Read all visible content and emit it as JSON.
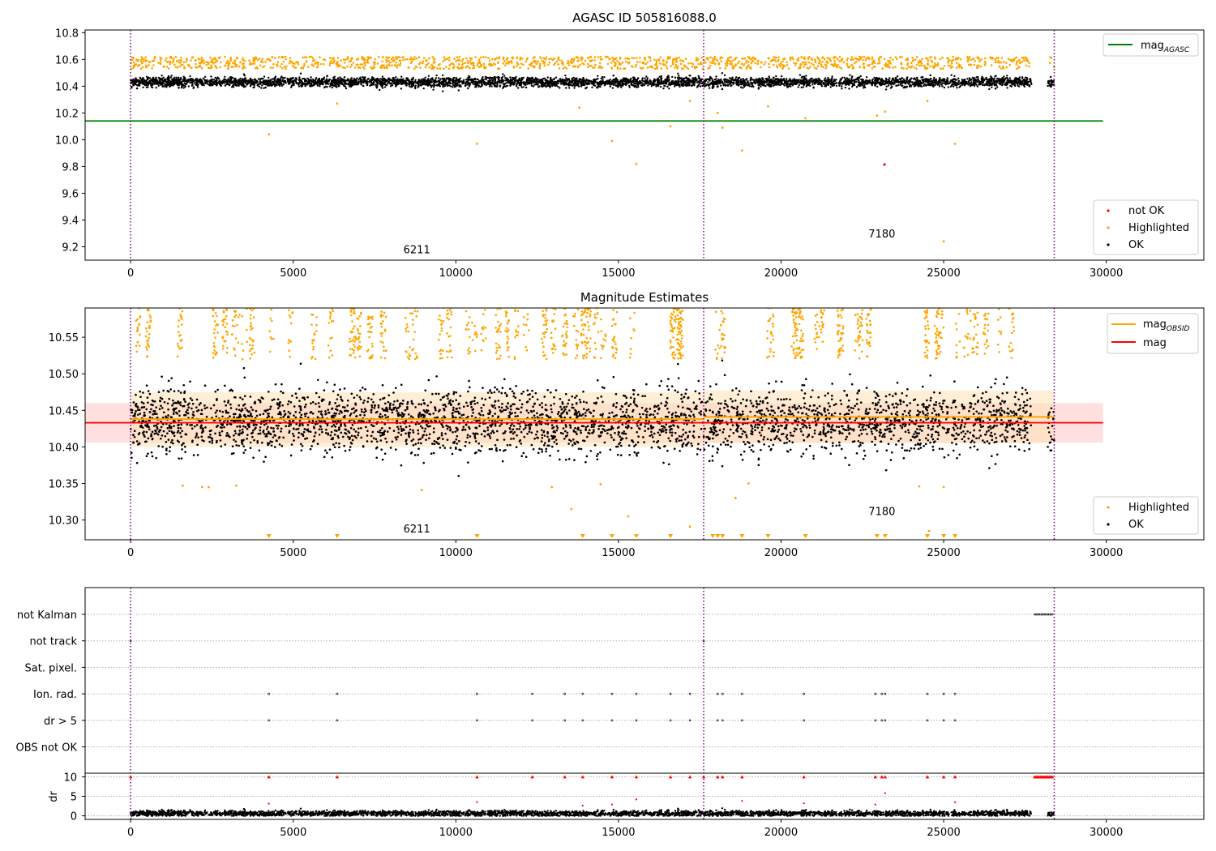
{
  "colors": {
    "ok": "#000000",
    "highlighted": "#ffa500",
    "not_ok": "#ff0000",
    "agasc_line": "#008000",
    "obsid_line": "#ffa500",
    "mag_line": "#ff0000",
    "obsid_boundary": "#800080",
    "grid": "#b0b0b0"
  },
  "chart_data": [
    {
      "type": "scatter",
      "title": "AGASC ID 505816088.0",
      "xlabel": "",
      "ylabel": "",
      "xlim": [
        -1400,
        33000
      ],
      "ylim": [
        9.1,
        10.82
      ],
      "xticks": [
        0,
        5000,
        10000,
        15000,
        20000,
        25000,
        30000
      ],
      "yticks": [
        9.2,
        9.4,
        9.6,
        9.8,
        10.0,
        10.2,
        10.4,
        10.6,
        10.8
      ],
      "ytick_labels": [
        "9.2",
        "9.4",
        "9.6",
        "9.8",
        "10.0",
        "10.2",
        "10.4",
        "10.6",
        "10.8"
      ],
      "obsid_boundaries": [
        0,
        17620,
        28400
      ],
      "obsid_labels": [
        {
          "text": "6211",
          "x": 8800,
          "y": 9.15
        },
        {
          "text": "7180",
          "x": 23100,
          "y": 9.27
        }
      ],
      "reference_lines": [
        {
          "name": "mag_AGASC",
          "y": 10.14,
          "x_range": [
            -1400,
            29900
          ]
        }
      ],
      "ok_band": {
        "center": 10.43,
        "spread": 0.03
      },
      "highlighted_band": {
        "low": 10.53,
        "high": 10.62
      },
      "highlighted_outliers": [
        [
          4250,
          10.04
        ],
        [
          6350,
          10.27
        ],
        [
          10650,
          9.97
        ],
        [
          14800,
          9.99
        ],
        [
          15550,
          9.82
        ],
        [
          16600,
          10.1
        ],
        [
          18050,
          10.2
        ],
        [
          18200,
          10.09
        ],
        [
          18800,
          9.92
        ],
        [
          19600,
          10.25
        ],
        [
          20750,
          10.16
        ],
        [
          22950,
          10.18
        ],
        [
          23200,
          10.21
        ],
        [
          24500,
          10.29
        ],
        [
          25000,
          9.24
        ],
        [
          25350,
          9.97
        ],
        [
          13800,
          10.24
        ],
        [
          17200,
          10.29
        ]
      ],
      "not_ok_points": [
        [
          23180,
          9.815
        ]
      ],
      "legend_top": {
        "position": "upper right",
        "entries": [
          {
            "label": "mag",
            "sub": "AGASC",
            "kind": "line"
          }
        ]
      },
      "legend_bottom": {
        "position": "lower right",
        "entries": [
          {
            "label": "not OK",
            "kind": "point",
            "color": "not_ok"
          },
          {
            "label": "Highlighted",
            "kind": "point",
            "color": "highlighted"
          },
          {
            "label": "OK",
            "kind": "point",
            "color": "ok"
          }
        ]
      }
    },
    {
      "type": "scatter",
      "title": "Magnitude Estimates",
      "xlabel": "",
      "ylabel": "",
      "xlim": [
        -1400,
        33000
      ],
      "ylim": [
        10.273,
        10.59
      ],
      "xticks": [
        0,
        5000,
        10000,
        15000,
        20000,
        25000,
        30000
      ],
      "yticks": [
        10.3,
        10.35,
        10.4,
        10.45,
        10.5,
        10.55
      ],
      "ytick_labels": [
        "10.30",
        "10.35",
        "10.40",
        "10.45",
        "10.50",
        "10.55"
      ],
      "obsid_boundaries": [
        0,
        17620,
        28400
      ],
      "obsid_labels": [
        {
          "text": "6211",
          "x": 8800,
          "y": 10.283
        },
        {
          "text": "7180",
          "x": 23100,
          "y": 10.307
        }
      ],
      "mag_line": {
        "name": "mag",
        "y": 10.433,
        "band": [
          10.406,
          10.46
        ],
        "x_range": [
          -1400,
          29900
        ]
      },
      "mag_obsid_segments": [
        {
          "x_range": [
            0,
            17620
          ],
          "y": 10.438,
          "band": [
            10.4,
            10.475
          ]
        },
        {
          "x_range": [
            17620,
            28400
          ],
          "y": 10.441,
          "band": [
            10.405,
            10.477
          ]
        }
      ],
      "ok_band": {
        "center": 10.435,
        "spread": 0.022
      },
      "highlighted_band": {
        "low": 10.52,
        "high": 10.59
      },
      "highlighted_outliers": [
        [
          1600,
          10.347
        ],
        [
          2200,
          10.345
        ],
        [
          2400,
          10.345
        ],
        [
          3250,
          10.347
        ],
        [
          8950,
          10.341
        ],
        [
          12950,
          10.345
        ],
        [
          13550,
          10.315
        ],
        [
          14450,
          10.349
        ],
        [
          15300,
          10.305
        ],
        [
          17200,
          10.291
        ],
        [
          18600,
          10.33
        ],
        [
          19000,
          10.35
        ],
        [
          24250,
          10.346
        ],
        [
          24550,
          10.285
        ],
        [
          25000,
          10.345
        ]
      ],
      "offscale_markers": [
        4250,
        6350,
        10650,
        13900,
        14800,
        15550,
        16600,
        17900,
        18050,
        18200,
        18800,
        19600,
        20750,
        22950,
        23200,
        24500,
        25000,
        25350
      ],
      "legend_top": {
        "position": "upper right",
        "entries": [
          {
            "label": "mag",
            "sub": "OBSID",
            "kind": "line",
            "color": "obsid_line"
          },
          {
            "label": "mag",
            "sub": "",
            "kind": "line",
            "color": "mag_line"
          }
        ]
      },
      "legend_bottom": {
        "position": "lower right",
        "entries": [
          {
            "label": "Highlighted",
            "kind": "point",
            "color": "highlighted"
          },
          {
            "label": "OK",
            "kind": "point",
            "color": "ok"
          }
        ]
      }
    },
    {
      "type": "scatter",
      "title": "",
      "xlabel": "",
      "ylabel": "dr",
      "xlim": [
        -1400,
        33000
      ],
      "flag_rows": [
        "not Kalman",
        "not track",
        "Sat. pixel.",
        "Ion. rad.",
        "dr > 5",
        "OBS not OK"
      ],
      "dr_ylim": [
        -0.5,
        10.5
      ],
      "dr_yticks": [
        0,
        5,
        10
      ],
      "dr_ytick_labels": [
        "0",
        "5",
        "10"
      ],
      "obsid_boundaries": [
        0,
        17620,
        28400
      ],
      "event_times": [
        4250,
        6350,
        10650,
        12350,
        13350,
        13900,
        14800,
        15550,
        16600,
        17200,
        18050,
        18200,
        18800,
        20700,
        22900,
        23100,
        23200,
        24500,
        25000,
        25350
      ],
      "not_track_times": [
        0,
        17620
      ],
      "not_kalman_range": [
        27800,
        28350
      ],
      "dr_spikes": [
        [
          4250,
          3.1
        ],
        [
          10650,
          3.5
        ],
        [
          13900,
          2.6
        ],
        [
          14800,
          2.9
        ],
        [
          15550,
          4.2
        ],
        [
          18800,
          3.8
        ],
        [
          20700,
          3.2
        ],
        [
          22900,
          2.9
        ],
        [
          23200,
          5.8
        ],
        [
          25350,
          3.5
        ]
      ],
      "dr_base": {
        "center": 0.6,
        "spread": 0.35
      }
    }
  ]
}
